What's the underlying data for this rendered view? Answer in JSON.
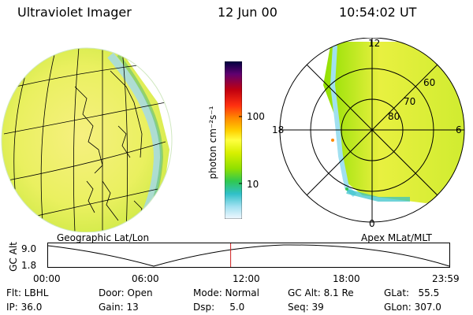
{
  "header": {
    "title": "Ultraviolet Imager",
    "date": "12 Jun 00",
    "time": "10:54:02 UT"
  },
  "geo_panel": {
    "caption": "Geographic Lat/Lon"
  },
  "apex_panel": {
    "caption": "Apex MLat/MLT",
    "mlt_labels": {
      "top": "12",
      "left": "18",
      "right": "6",
      "bottom": "0"
    },
    "lat_labels": [
      "60",
      "70",
      "80"
    ]
  },
  "colorbar": {
    "unit_label": "photon cm⁻²s⁻¹",
    "ticks": [
      "100",
      "10"
    ],
    "colors": [
      "#000040",
      "#600070",
      "#c00010",
      "#ff3010",
      "#ff8a00",
      "#ffd000",
      "#ffff40",
      "#d8f000",
      "#90e000",
      "#30c850",
      "#30c0c8",
      "#a0e0f0",
      "#f0f8ff"
    ]
  },
  "timeline": {
    "axis_label": "GC Alt",
    "y_ticks": [
      "9.0",
      "1.8"
    ],
    "x_ticks": [
      "00:00",
      "06:00",
      "12:00",
      "18:00",
      "23:59"
    ],
    "current_time_fraction": 0.455,
    "marker_color": "#d02020"
  },
  "info": {
    "filter": "Flt: LBHL",
    "ip": "IP: 36.0",
    "door": "Door: Open",
    "gain": "Gain: 13",
    "mode": "Mode: Normal",
    "dsp": "Dsp:     5.0",
    "gc_alt": "GC Alt: 8.1 Re",
    "seq": "Seq: 39",
    "glat": "GLat:   55.5",
    "glon": "GLon: 307.0"
  }
}
